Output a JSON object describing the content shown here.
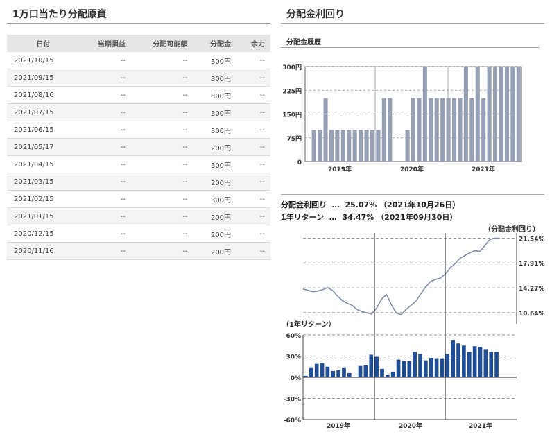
{
  "left_panel": {
    "title": "1万口当たり分配原資",
    "columns": [
      "日付",
      "当期損益",
      "分配可能額",
      "分配金",
      "余力"
    ],
    "rows": [
      [
        "2021/10/15",
        "--",
        "--",
        "300円",
        "--"
      ],
      [
        "2021/09/15",
        "--",
        "--",
        "300円",
        "--"
      ],
      [
        "2021/08/16",
        "--",
        "--",
        "300円",
        "--"
      ],
      [
        "2021/07/15",
        "--",
        "--",
        "300円",
        "--"
      ],
      [
        "2021/06/15",
        "--",
        "--",
        "300円",
        "--"
      ],
      [
        "2021/05/17",
        "--",
        "--",
        "200円",
        "--"
      ],
      [
        "2021/04/15",
        "--",
        "--",
        "300円",
        "--"
      ],
      [
        "2021/03/15",
        "--",
        "--",
        "200円",
        "--"
      ],
      [
        "2021/02/15",
        "--",
        "--",
        "300円",
        "--"
      ],
      [
        "2021/01/15",
        "--",
        "--",
        "200円",
        "--"
      ],
      [
        "2020/12/15",
        "--",
        "--",
        "200円",
        "--"
      ],
      [
        "2020/11/16",
        "--",
        "--",
        "200円",
        "--"
      ]
    ]
  },
  "right_panel": {
    "title": "分配金利回り",
    "history_subtitle": "分配金履歴",
    "summary": [
      {
        "label": "分配金利回り",
        "sep": "…",
        "value": "25.07%",
        "date": "（2021年10月26日）"
      },
      {
        "label": "1年リターン",
        "sep": "…",
        "value": "34.47%",
        "date": "（2021年09月30日）"
      }
    ]
  },
  "colors": {
    "bar_gray": "#96a0b4",
    "bar_blue": "#1f4e96",
    "line": "#7f8eaa",
    "grid": "#999999"
  },
  "chart_data": [
    {
      "type": "bar",
      "name": "分配金履歴",
      "ylim": [
        0,
        300
      ],
      "yticks": [
        "0",
        "75円",
        "150円",
        "225円",
        "300円"
      ],
      "xlabels": [
        "2019年",
        "2020年",
        "2021年"
      ],
      "values": [
        2,
        100,
        100,
        200,
        100,
        100,
        100,
        100,
        100,
        100,
        100,
        100,
        100,
        200,
        200,
        2,
        2,
        100,
        200,
        200,
        300,
        200,
        200,
        200,
        200,
        200,
        200,
        300,
        200,
        300,
        200,
        300,
        300,
        300,
        300,
        300,
        300
      ]
    },
    {
      "type": "line",
      "name": "分配金利回り",
      "y_axis_title": "（分配金利回り）",
      "yticks": [
        "10.64%",
        "14.27%",
        "17.91%",
        "21.54%"
      ],
      "ylim": [
        9.0,
        22.3
      ],
      "values": [
        14.1,
        13.9,
        13.7,
        13.8,
        14.0,
        14.3,
        13.9,
        13.1,
        12.4,
        12.0,
        11.7,
        11.1,
        10.8,
        10.6,
        10.45,
        11.3,
        12.6,
        13.3,
        11.8,
        10.6,
        10.35,
        11.1,
        11.7,
        12.3,
        13.4,
        14.4,
        15.2,
        15.5,
        15.7,
        16.3,
        17.2,
        17.8,
        18.6,
        19.0,
        19.4,
        19.7,
        19.6,
        20.4,
        21.3,
        21.54,
        21.54
      ]
    },
    {
      "type": "bar",
      "name": "1年リターン",
      "y_axis_title": "（1年リターン）",
      "ylim": [
        -60,
        60
      ],
      "yticks": [
        "60%",
        "30%",
        "0%",
        "-30%",
        "-60%"
      ],
      "xlabels": [
        "2019年",
        "2020年",
        "2021年"
      ],
      "values": [
        2,
        13,
        19,
        20,
        15,
        9,
        10,
        13,
        6,
        1,
        16,
        17,
        32,
        29,
        12,
        3,
        8,
        25,
        23,
        23,
        36,
        33,
        24,
        27,
        26,
        26,
        33,
        52,
        48,
        45,
        36,
        44,
        43,
        39,
        36,
        36
      ]
    }
  ]
}
